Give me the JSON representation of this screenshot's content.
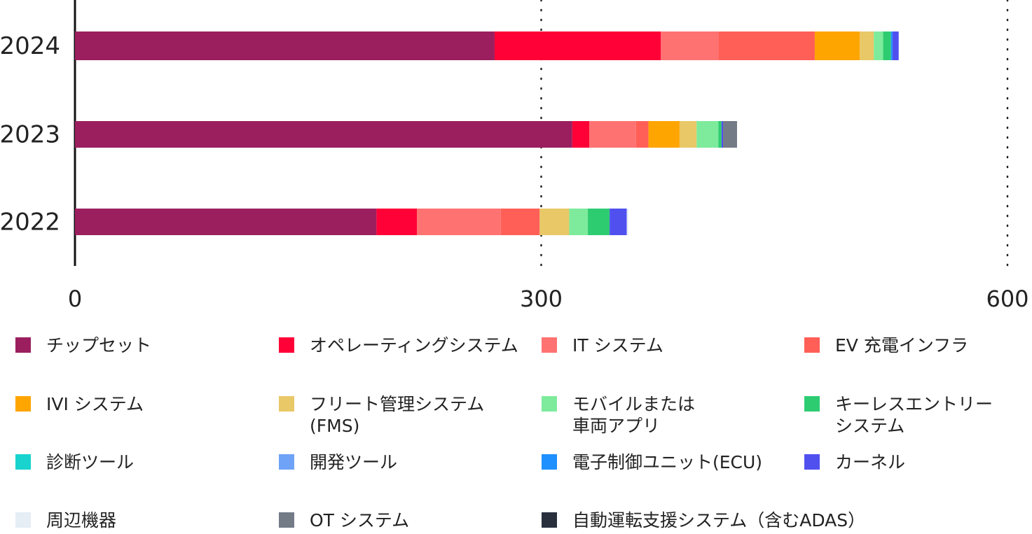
{
  "chart_data": {
    "type": "stacked-bar-horizontal",
    "categories": [
      "2024",
      "2023",
      "2022"
    ],
    "series": [
      {
        "name": "チップセット",
        "color": "#9b1f5f",
        "values": [
          270,
          320,
          194
        ]
      },
      {
        "name": "オペレーティングシステム",
        "color": "#ff0037",
        "values": [
          107,
          11,
          26
        ]
      },
      {
        "name": "IT システム",
        "color": "#ff7272",
        "values": [
          37,
          30,
          54
        ]
      },
      {
        "name": "EV 充電インフラ",
        "color": "#ff5f57",
        "values": [
          62,
          8,
          25
        ]
      },
      {
        "name": "IVI システム",
        "color": "#ffa500",
        "values": [
          29,
          20,
          0
        ]
      },
      {
        "name": "フリート管理システム\n(FMS)",
        "color": "#e8c867",
        "values": [
          9,
          11,
          19
        ]
      },
      {
        "name": "モバイルまたは\n車両アプリ",
        "color": "#7deb9b",
        "values": [
          6,
          14,
          12
        ]
      },
      {
        "name": "キーレスエントリー\nシステム",
        "color": "#2ecc71",
        "values": [
          5,
          2,
          14
        ]
      },
      {
        "name": "診断ツール",
        "color": "#19d3cf",
        "values": [
          0,
          0,
          0
        ]
      },
      {
        "name": "開発ツール",
        "color": "#6fa3f7",
        "values": [
          0,
          0,
          0
        ]
      },
      {
        "name": "電子制御ユニット(ECU)",
        "color": "#1e90ff",
        "values": [
          1,
          0,
          0
        ]
      },
      {
        "name": "カーネル",
        "color": "#5050ef",
        "values": [
          4,
          1,
          11
        ]
      },
      {
        "name": "周辺機器",
        "color": "#e5edf5",
        "values": [
          0,
          0,
          1
        ]
      },
      {
        "name": "OT システム",
        "color": "#737b87",
        "values": [
          0,
          9,
          0
        ]
      },
      {
        "name": "自動運転支援システム（含むADAS）",
        "color": "#2a2f3d",
        "values": [
          0,
          0,
          0
        ]
      }
    ],
    "xlim": [
      0,
      600
    ],
    "xticks": [
      0,
      300,
      600
    ],
    "grid": true
  }
}
